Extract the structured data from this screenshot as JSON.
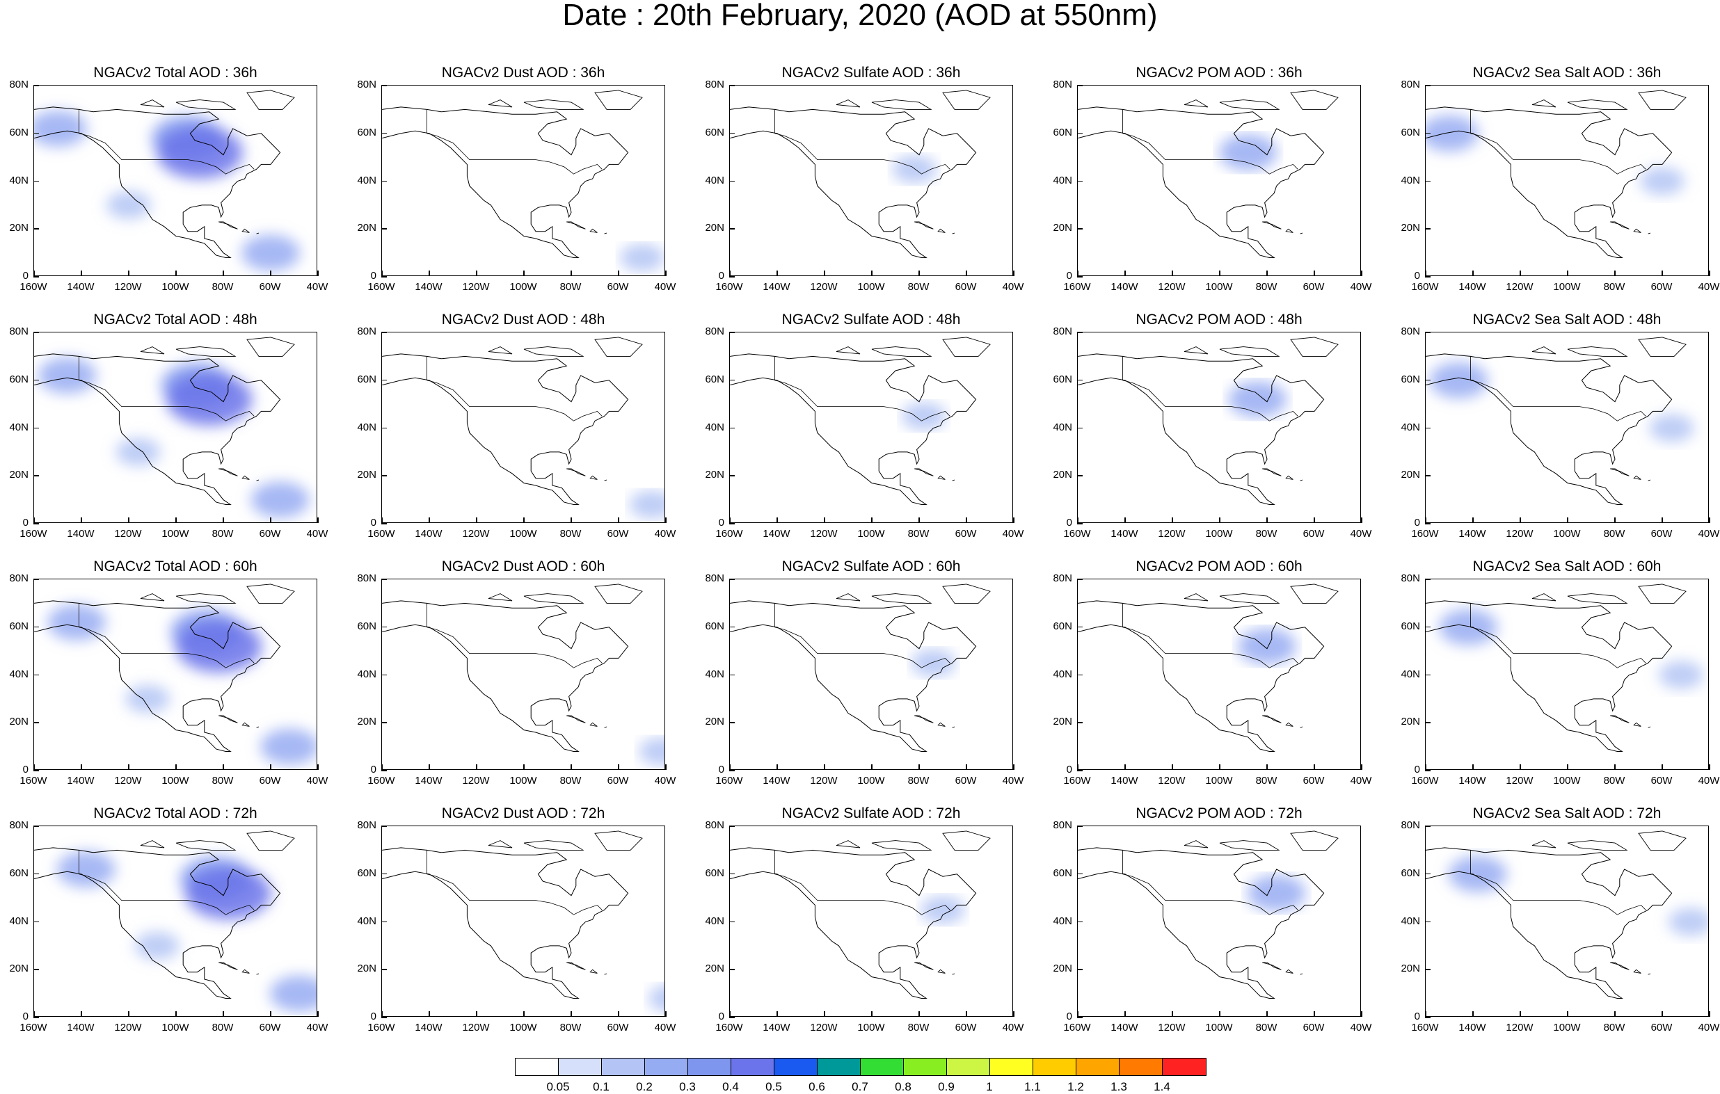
{
  "title": "Date : 20th February, 2020 (AOD at 550nm)",
  "panel_titles": [
    [
      "NGACv2 Total AOD : 36h",
      "NGACv2 Dust AOD : 36h",
      "NGACv2 Sulfate AOD : 36h",
      "NGACv2 POM AOD : 36h",
      "NGACv2 Sea Salt AOD : 36h"
    ],
    [
      "NGACv2 Total AOD : 48h",
      "NGACv2 Dust AOD : 48h",
      "NGACv2 Sulfate AOD : 48h",
      "NGACv2 POM AOD : 48h",
      "NGACv2 Sea Salt AOD : 48h"
    ],
    [
      "NGACv2 Total AOD : 60h",
      "NGACv2 Dust AOD : 60h",
      "NGACv2 Sulfate AOD : 60h",
      "NGACv2 POM AOD : 60h",
      "NGACv2 Sea Salt AOD : 60h"
    ],
    [
      "NGACv2 Total AOD : 72h",
      "NGACv2 Dust AOD : 72h",
      "NGACv2 Sulfate AOD : 72h",
      "NGACv2 POM AOD : 72h",
      "NGACv2 Sea Salt  AOD : 72h"
    ]
  ],
  "lat_ticks": [
    "80N",
    "60N",
    "40N",
    "20N",
    "0"
  ],
  "lon_ticks": [
    "160W",
    "140W",
    "120W",
    "100W",
    "80W",
    "60W",
    "40W"
  ],
  "colorbar": {
    "labels": [
      "0.05",
      "0.1",
      "0.2",
      "0.3",
      "0.4",
      "0.5",
      "0.6",
      "0.7",
      "0.8",
      "0.9",
      "1",
      "1.1",
      "1.2",
      "1.3",
      "1.4"
    ],
    "colors": [
      "#ffffff",
      "#d6e0fa",
      "#b3c4f5",
      "#96acf2",
      "#7f96ef",
      "#6b74ea",
      "#1a5af0",
      "#009999",
      "#33dd33",
      "#88ee22",
      "#ccf544",
      "#ffff22",
      "#ffcc00",
      "#ffa500",
      "#ff7a00",
      "#ff2222"
    ]
  },
  "fields": {
    "Total": [
      {
        "lon": -95,
        "lat": 58,
        "level": 3
      },
      {
        "lon": -90,
        "lat": 52,
        "level": 4
      },
      {
        "lon": -150,
        "lat": 62,
        "level": 2
      },
      {
        "lon": -120,
        "lat": 30,
        "level": 1
      },
      {
        "lon": -60,
        "lat": 10,
        "level": 2
      }
    ],
    "Dust": [
      {
        "lon": -50,
        "lat": 8,
        "level": 1
      }
    ],
    "Sulfate": [
      {
        "lon": -82,
        "lat": 45,
        "level": 1
      }
    ],
    "POM": [
      {
        "lon": -88,
        "lat": 52,
        "level": 2
      }
    ],
    "SeaSalt": [
      {
        "lon": -150,
        "lat": 60,
        "level": 2
      },
      {
        "lon": -60,
        "lat": 40,
        "level": 1
      }
    ]
  }
}
